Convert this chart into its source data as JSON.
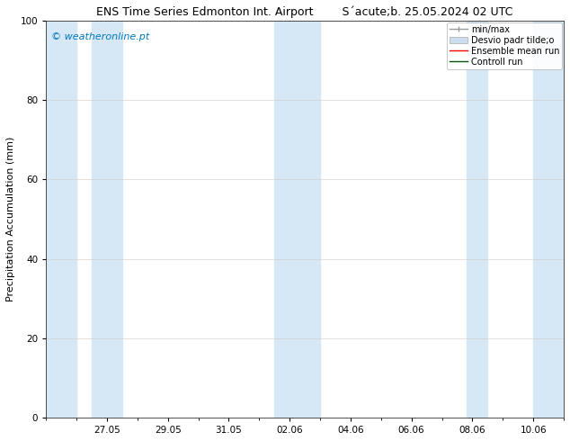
{
  "title_left": "ENS Time Series Edmonton Int. Airport",
  "title_right": "S´acute;b. 25.05.2024 02 UTC",
  "ylabel": "Precipitation Accumulation (mm)",
  "watermark": "© weatheronline.pt",
  "watermark_color": "#0077bb",
  "ylim": [
    0,
    100
  ],
  "yticks": [
    0,
    20,
    40,
    60,
    80,
    100
  ],
  "xtick_labels": [
    "27.05",
    "29.05",
    "31.05",
    "02.06",
    "04.06",
    "06.06",
    "08.06",
    "10.06"
  ],
  "xtick_positions": [
    2,
    4,
    6,
    8,
    10,
    12,
    14,
    16
  ],
  "xlim": [
    0,
    17
  ],
  "background_color": "#ffffff",
  "plot_bg_color": "#ffffff",
  "shaded_band_color": "#d6e8f5",
  "band_pairs": [
    [
      0.0,
      1.0
    ],
    [
      1.5,
      2.5
    ],
    [
      7.5,
      8.5
    ],
    [
      8.5,
      9.0
    ],
    [
      13.8,
      14.5
    ],
    [
      16.0,
      17.0
    ]
  ],
  "grid_color": "#cccccc",
  "border_color": "#333333",
  "title_fontsize": 9,
  "tick_fontsize": 7.5,
  "ylabel_fontsize": 8,
  "legend_fontsize": 7,
  "minmax_color": "#999999",
  "desvio_color": "#ccddee",
  "ensemble_color": "#ff0000",
  "control_color": "#005500"
}
